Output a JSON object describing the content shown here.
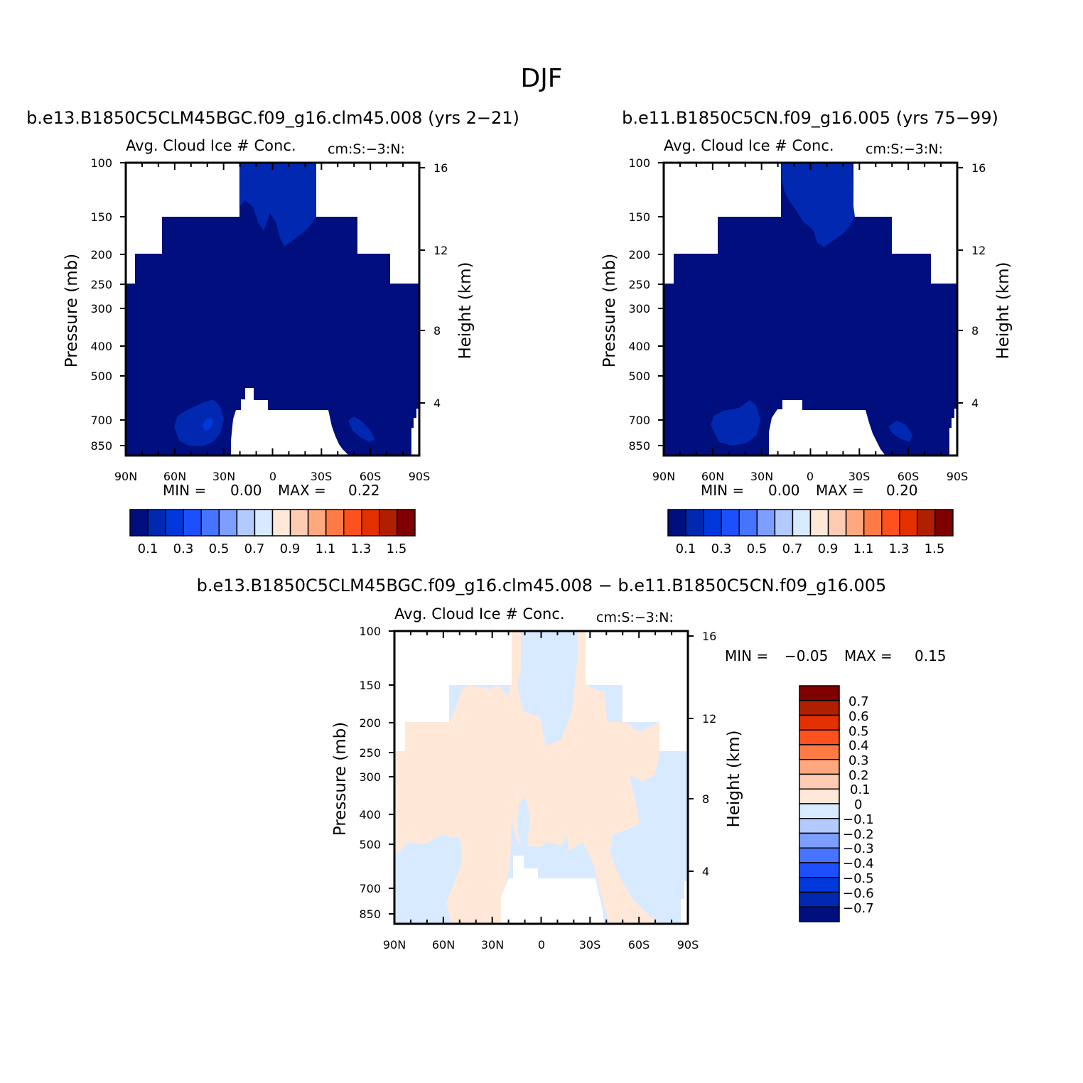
{
  "title": "DJF",
  "colors": {
    "abs_scale": [
      "#000e7e",
      "#0028b0",
      "#0038dc",
      "#1c50ff",
      "#4673ff",
      "#7c9eff",
      "#b3caff",
      "#d8eaff",
      "#ffe8d8",
      "#ffcbb2",
      "#ffa880",
      "#ff7b45",
      "#ff5020",
      "#e23000",
      "#b01f00",
      "#7f0000"
    ],
    "diff_scale": [
      "#000e7e",
      "#0028b0",
      "#0038dc",
      "#1c50ff",
      "#4673ff",
      "#7c9eff",
      "#b3caff",
      "#d8eaff",
      "#ffe8d8",
      "#ffcbb2",
      "#ffa880",
      "#ff7b45",
      "#ff5020",
      "#e23000",
      "#b01f00",
      "#7f0000"
    ]
  },
  "chart_data": [
    {
      "type": "contour",
      "title": "b.e13.B1850C5CLM45BGC.f09_g16.clm45.008 (yrs 2−21)",
      "subtitle": "Avg. Cloud Ice # Conc.",
      "units": "cm:S:−3:N:",
      "ylabel": "Pressure (mb)",
      "ylabel_right": "Height (km)",
      "x_ticks": [
        "90N",
        "60N",
        "30N",
        "0",
        "30S",
        "60S",
        "90S"
      ],
      "y_ticks": [
        "100",
        "150",
        "200",
        "250",
        "300",
        "400",
        "500",
        "700",
        "850"
      ],
      "y_ticks_right": [
        "16",
        "12",
        "8",
        "4"
      ],
      "min_label": "MIN =",
      "min_value": "0.00",
      "max_label": "MAX =",
      "max_value": "0.22",
      "colorbar_labels": [
        "0.1",
        "0.3",
        "0.5",
        "0.7",
        "0.9",
        "1.1",
        "1.3",
        "1.5"
      ]
    },
    {
      "type": "contour",
      "title": "b.e11.B1850C5CN.f09_g16.005 (yrs 75−99)",
      "subtitle": "Avg. Cloud Ice # Conc.",
      "units": "cm:S:−3:N:",
      "ylabel": "Pressure (mb)",
      "ylabel_right": "Height (km)",
      "x_ticks": [
        "90N",
        "60N",
        "30N",
        "0",
        "30S",
        "60S",
        "90S"
      ],
      "y_ticks": [
        "100",
        "150",
        "200",
        "250",
        "300",
        "400",
        "500",
        "700",
        "850"
      ],
      "y_ticks_right": [
        "16",
        "12",
        "8",
        "4"
      ],
      "min_label": "MIN =",
      "min_value": "0.00",
      "max_label": "MAX =",
      "max_value": "0.20",
      "colorbar_labels": [
        "0.1",
        "0.3",
        "0.5",
        "0.7",
        "0.9",
        "1.1",
        "1.3",
        "1.5"
      ]
    },
    {
      "type": "contour",
      "title": "b.e13.B1850C5CLM45BGC.f09_g16.clm45.008 − b.e11.B1850C5CN.f09_g16.005",
      "subtitle": "Avg. Cloud Ice # Conc.",
      "units": "cm:S:−3:N:",
      "ylabel": "Pressure (mb)",
      "ylabel_right": "Height (km)",
      "x_ticks": [
        "90N",
        "60N",
        "30N",
        "0",
        "30S",
        "60S",
        "90S"
      ],
      "y_ticks": [
        "100",
        "150",
        "200",
        "250",
        "300",
        "400",
        "500",
        "700",
        "850"
      ],
      "y_ticks_right": [
        "16",
        "12",
        "8",
        "4"
      ],
      "min_label": "MIN =",
      "min_value": "−0.05",
      "max_label": "MAX =",
      "max_value": "0.15",
      "colorbar_labels": [
        "0.7",
        "0.6",
        "0.5",
        "0.4",
        "0.3",
        "0.2",
        "0.1",
        "0",
        "−0.1",
        "−0.2",
        "−0.3",
        "−0.4",
        "−0.5",
        "−0.6",
        "−0.7"
      ]
    }
  ]
}
